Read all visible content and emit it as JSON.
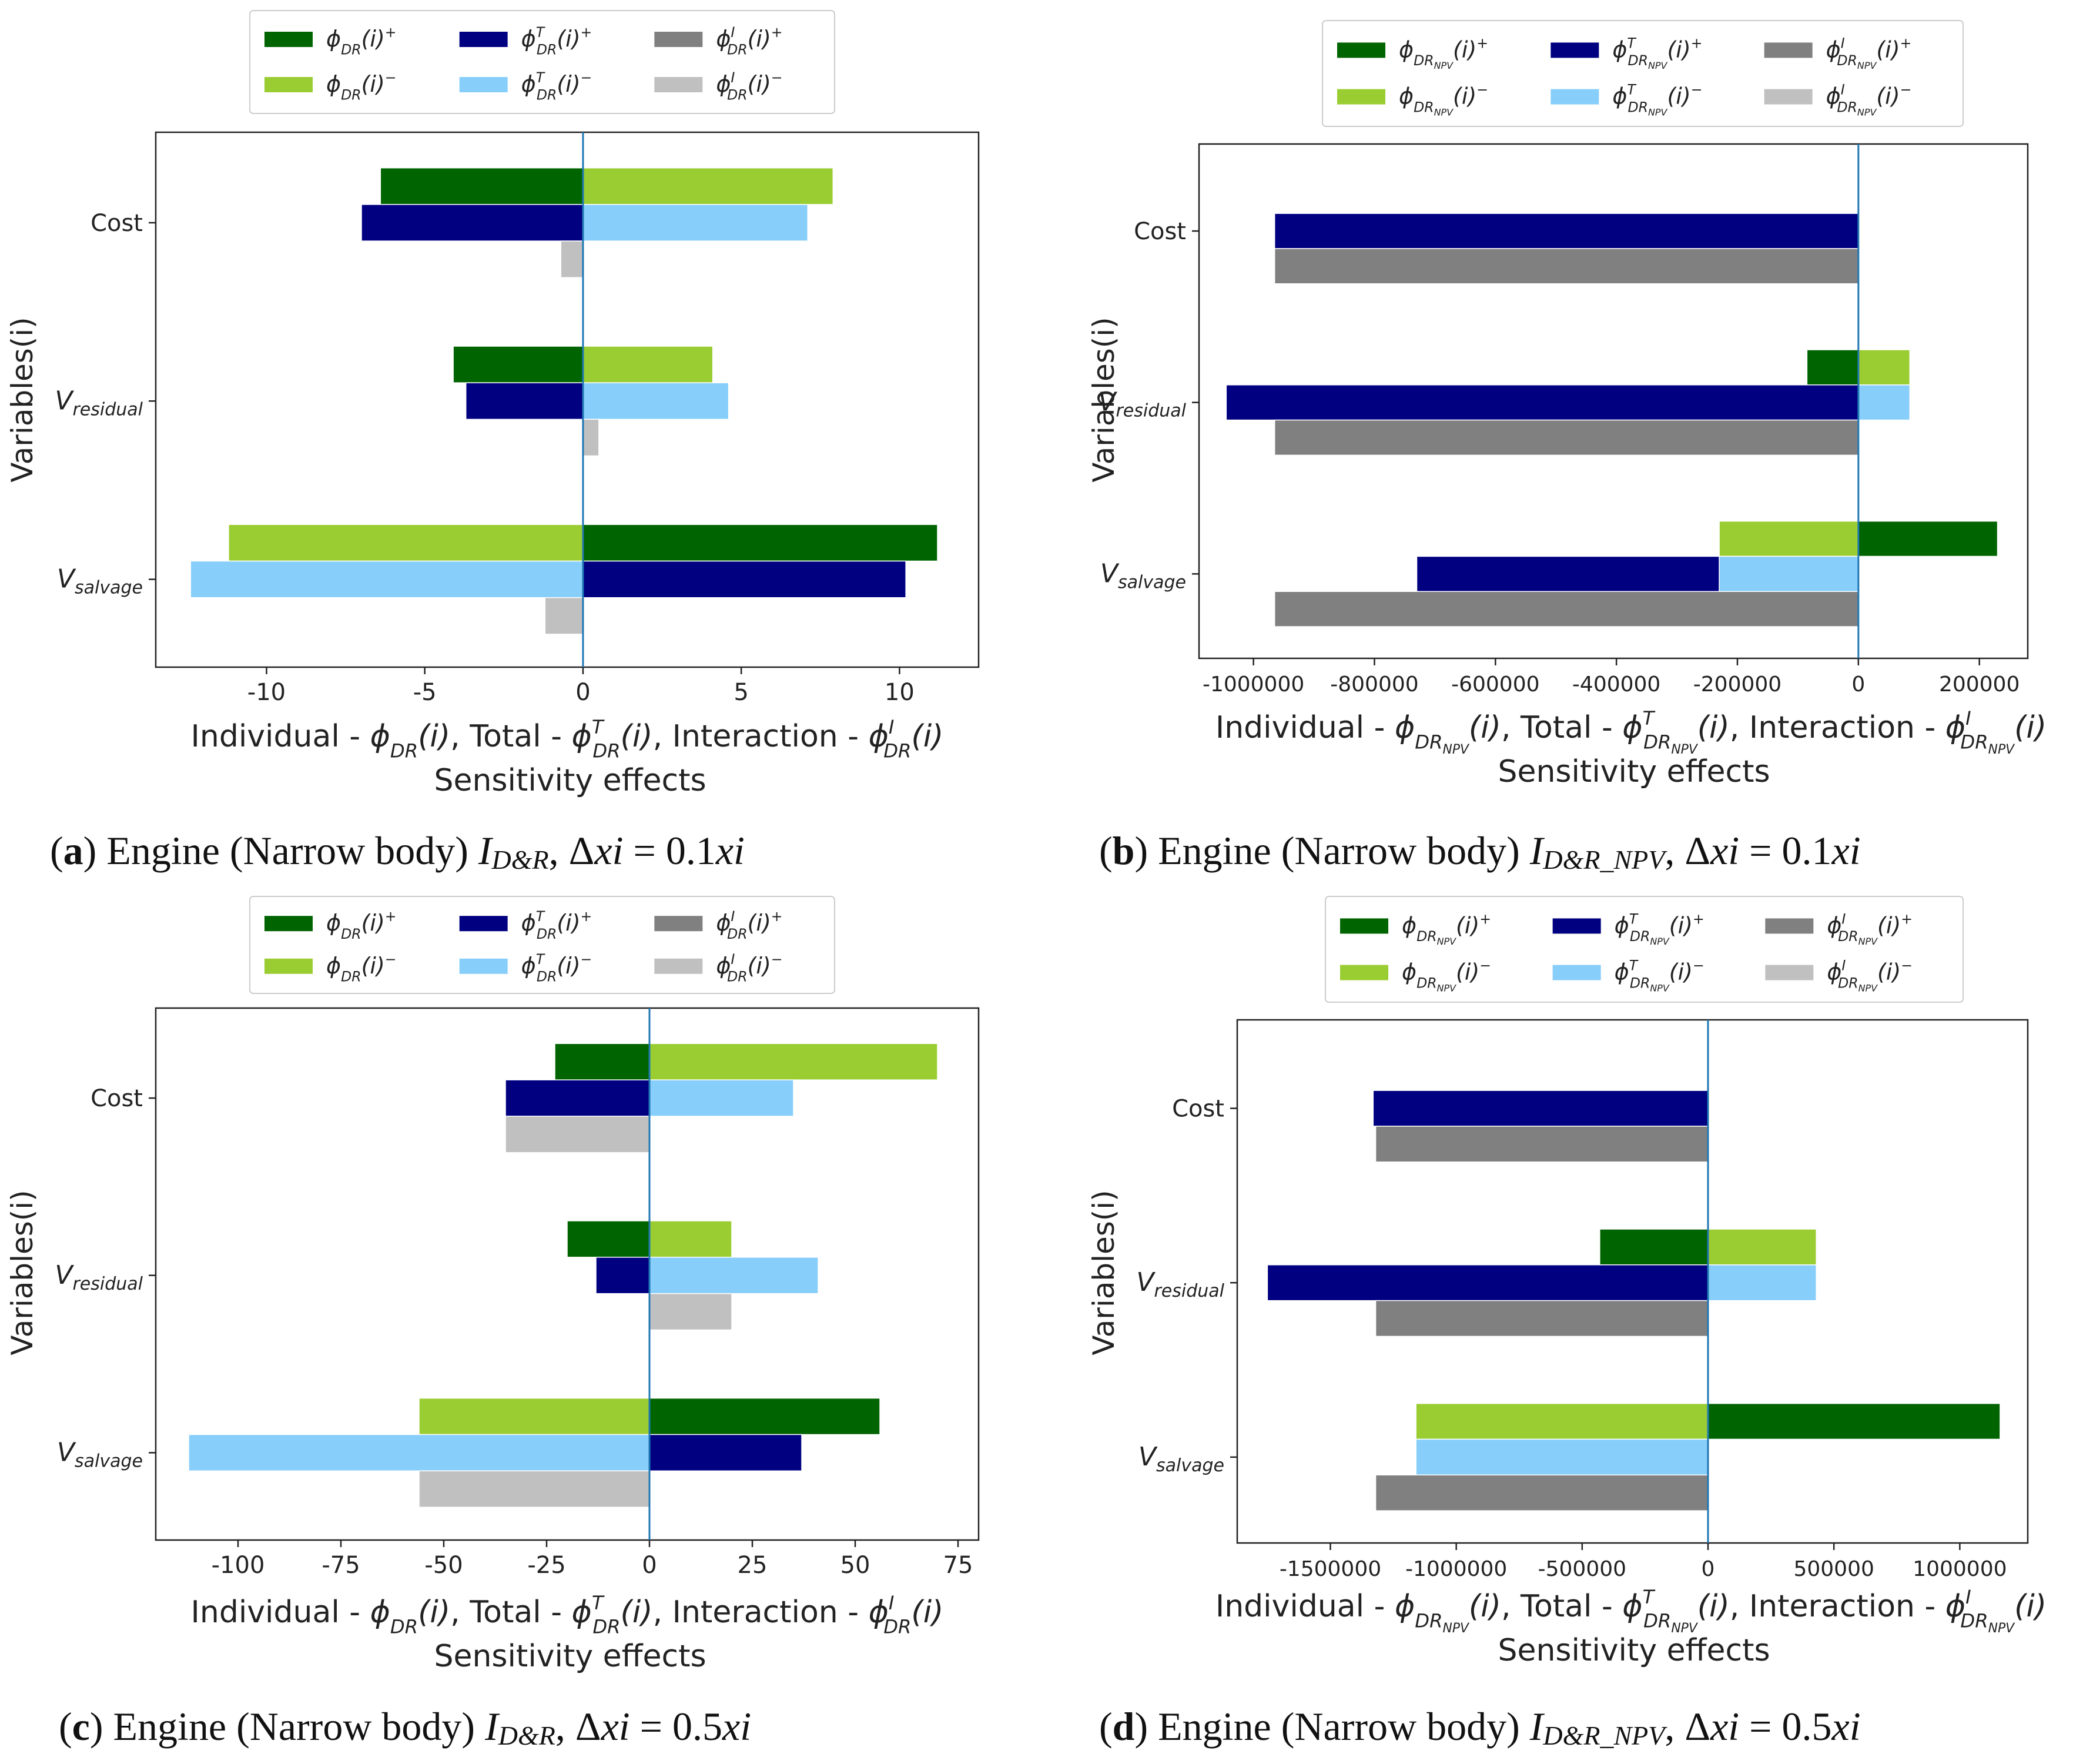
{
  "colors": {
    "ind_plus": "#006400",
    "ind_minus": "#9acd32",
    "tot_plus": "#000080",
    "tot_minus": "#87cefa",
    "int_plus": "#808080",
    "int_minus": "#c0c0c0",
    "zero_line": "#1f77b4"
  },
  "common": {
    "ylabel": "Variables(i)",
    "xlabel_line2": "Sensitivity effects",
    "y_categories": [
      "Cost",
      "Vresidual",
      "Vsalvage"
    ]
  },
  "labels": {
    "phi": "ϕ",
    "DR": "DR",
    "NPV": "NPV",
    "T": "T",
    "I": "I",
    "plus": "+",
    "minus": "−",
    "of_i": "(i)",
    "V": "V",
    "residual": "residual",
    "salvage": "salvage",
    "x_individual": "Individual - ",
    "x_total": "Total - ",
    "x_interaction": "Interaction - "
  },
  "captions": [
    {
      "letter": "a",
      "text": "Engine (Narrow body) ",
      "index_main": "I",
      "index_sub": "D&R",
      "delta": "0.1"
    },
    {
      "letter": "b",
      "text": "Engine (Narrow body) ",
      "index_main": "I",
      "index_sub": "D&R_NPV",
      "delta": "0.1"
    },
    {
      "letter": "c",
      "text": "Engine (Narrow body) ",
      "index_main": "I",
      "index_sub": "D&R",
      "delta": "0.5"
    },
    {
      "letter": "d",
      "text": "Engine (Narrow body) ",
      "index_main": "I",
      "index_sub": "D&R_NPV",
      "delta": "0.5"
    }
  ],
  "chart_data": [
    {
      "id": "a",
      "type": "bar",
      "orientation": "horizontal",
      "npv": false,
      "xlim": [
        -13.5,
        12.5
      ],
      "xticks": [
        -10,
        -5,
        0,
        5,
        10
      ],
      "xticklabels": [
        "-10",
        "-5",
        "0",
        "5",
        "10"
      ],
      "categories": [
        "Cost",
        "Vresidual",
        "Vsalvage"
      ],
      "series": [
        {
          "name": "ind_plus",
          "values": [
            -6.4,
            -4.1,
            11.2
          ]
        },
        {
          "name": "ind_minus",
          "values": [
            7.9,
            4.1,
            -11.2
          ]
        },
        {
          "name": "tot_plus",
          "values": [
            -7.0,
            -3.7,
            10.2
          ]
        },
        {
          "name": "tot_minus",
          "values": [
            7.1,
            4.6,
            -12.4
          ]
        },
        {
          "name": "int_plus",
          "values": [
            0,
            0,
            0
          ]
        },
        {
          "name": "int_minus",
          "values": [
            -0.7,
            0.5,
            -1.2
          ]
        }
      ]
    },
    {
      "id": "b",
      "type": "bar",
      "orientation": "horizontal",
      "npv": true,
      "xlim": [
        -1090000,
        280000
      ],
      "xticks": [
        -1000000,
        -800000,
        -600000,
        -400000,
        -200000,
        0,
        200000
      ],
      "xticklabels": [
        "-1000000",
        "-800000",
        "-600000",
        "-400000",
        "-200000",
        "0",
        "200000"
      ],
      "categories": [
        "Cost",
        "Vresidual",
        "Vsalvage"
      ],
      "series": [
        {
          "name": "ind_plus",
          "values": [
            0,
            -85000,
            230000
          ]
        },
        {
          "name": "ind_minus",
          "values": [
            0,
            85000,
            -230000
          ]
        },
        {
          "name": "tot_plus",
          "values": [
            -965000,
            -1045000,
            -730000
          ]
        },
        {
          "name": "tot_minus",
          "values": [
            0,
            85000,
            -230000
          ]
        },
        {
          "name": "int_plus",
          "values": [
            -965000,
            -965000,
            -965000
          ]
        },
        {
          "name": "int_minus",
          "values": [
            0,
            0,
            0
          ]
        }
      ]
    },
    {
      "id": "c",
      "type": "bar",
      "orientation": "horizontal",
      "npv": false,
      "xlim": [
        -120,
        80
      ],
      "xticks": [
        -100,
        -75,
        -50,
        -25,
        0,
        25,
        50,
        75
      ],
      "xticklabels": [
        "-100",
        "-75",
        "-50",
        "-25",
        "0",
        "25",
        "50",
        "75"
      ],
      "categories": [
        "Cost",
        "Vresidual",
        "Vsalvage"
      ],
      "series": [
        {
          "name": "ind_plus",
          "values": [
            -23,
            -20,
            56
          ]
        },
        {
          "name": "ind_minus",
          "values": [
            70,
            20,
            -56
          ]
        },
        {
          "name": "tot_plus",
          "values": [
            -35,
            -13,
            37
          ]
        },
        {
          "name": "tot_minus",
          "values": [
            35,
            41,
            -112
          ]
        },
        {
          "name": "int_plus",
          "values": [
            0,
            0,
            0
          ]
        },
        {
          "name": "int_minus",
          "values": [
            -35,
            20,
            -56
          ]
        }
      ]
    },
    {
      "id": "d",
      "type": "bar",
      "orientation": "horizontal",
      "npv": true,
      "xlim": [
        -1870000,
        1270000
      ],
      "xticks": [
        -1500000,
        -1000000,
        -500000,
        0,
        500000,
        1000000
      ],
      "xticklabels": [
        "-1500000",
        "-1000000",
        "-500000",
        "0",
        "500000",
        "1000000"
      ],
      "categories": [
        "Cost",
        "Vresidual",
        "Vsalvage"
      ],
      "series": [
        {
          "name": "ind_plus",
          "values": [
            0,
            -430000,
            1160000
          ]
        },
        {
          "name": "ind_minus",
          "values": [
            0,
            430000,
            -1160000
          ]
        },
        {
          "name": "tot_plus",
          "values": [
            -1330000,
            -1750000,
            0
          ]
        },
        {
          "name": "tot_minus",
          "values": [
            0,
            430000,
            -1160000
          ]
        },
        {
          "name": "int_plus",
          "values": [
            -1320000,
            -1320000,
            -1320000
          ]
        },
        {
          "name": "int_minus",
          "values": [
            0,
            0,
            0
          ]
        }
      ]
    }
  ]
}
